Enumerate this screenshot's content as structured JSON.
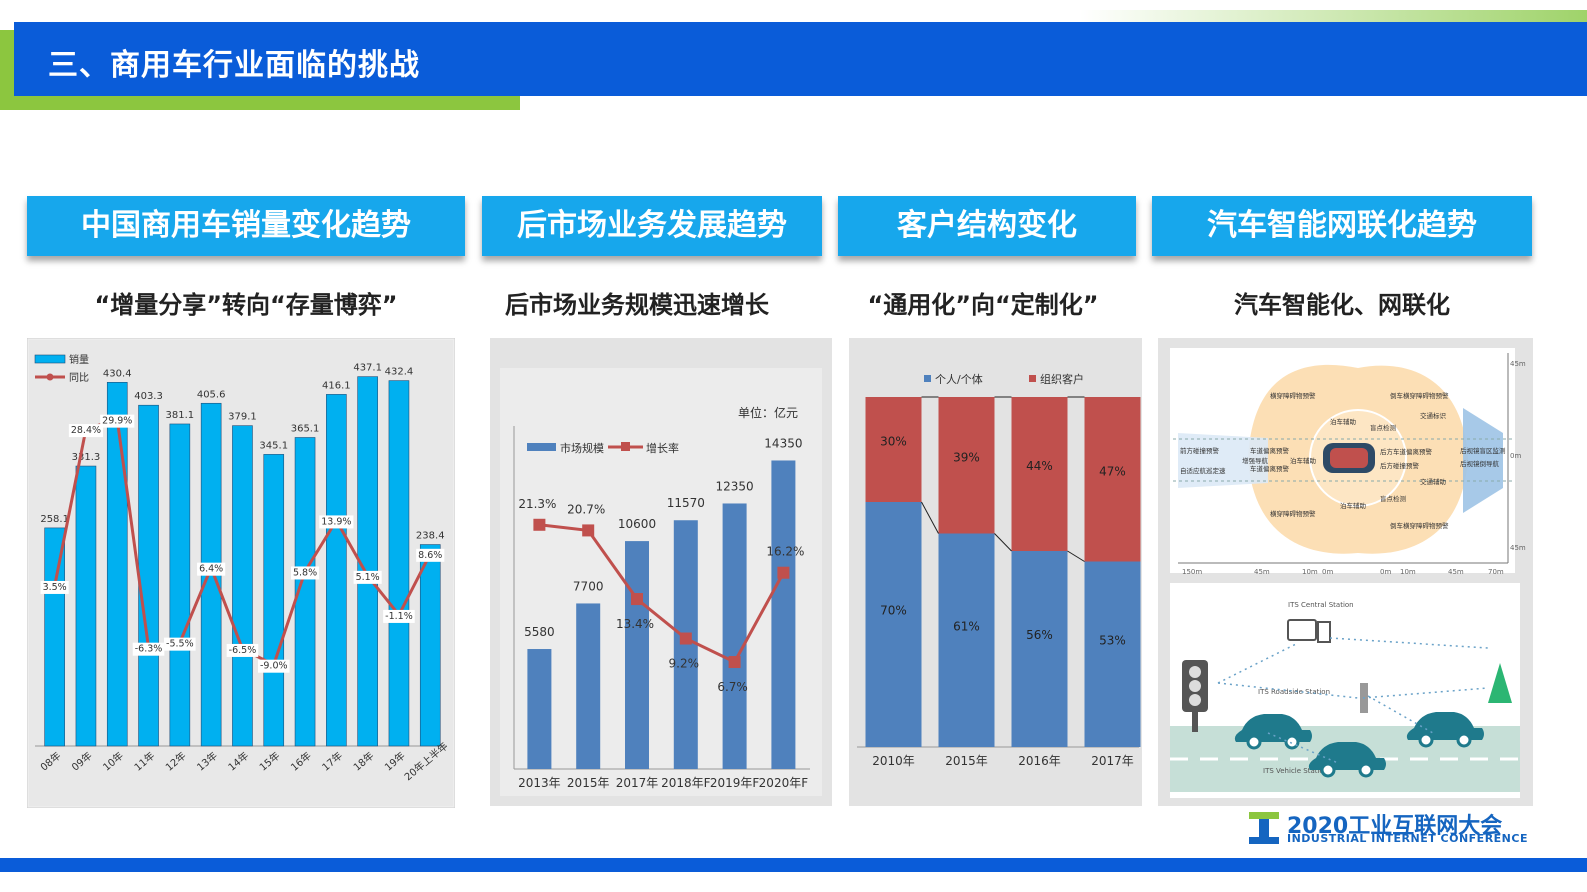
{
  "header": {
    "title": "三、商用车行业面临的挑战"
  },
  "categories": [
    {
      "title": "中国商用车销量变化趋势",
      "subtitle": "“增量分享”转向“存量博弈”"
    },
    {
      "title": "后市场业务发展趋势",
      "subtitle": "后市场业务规模迅速增长"
    },
    {
      "title": "客户结构变化",
      "subtitle": "“通用化”向“定制化”"
    },
    {
      "title": "汽车智能网联化趋势",
      "subtitle": "汽车智能化、网联化"
    }
  ],
  "logo": {
    "line1": "2020工业互联网大会",
    "line2": "INDUSTRIAL INTERNET CONFERENCE"
  },
  "colors": {
    "accent_blue": "#0a5cd9",
    "green": "#8cc63f",
    "cat_blue": "#17a7ec",
    "bar_cyan": "#00b0f0",
    "line_red": "#c0504d",
    "bar_blue": "#4f81bd"
  },
  "chart_data": [
    {
      "type": "bar",
      "legend": [
        "销量",
        "同比"
      ],
      "categories": [
        "08年",
        "09年",
        "10年",
        "11年",
        "12年",
        "13年",
        "14年",
        "15年",
        "16年",
        "17年",
        "18年",
        "19年",
        "20年上半年"
      ],
      "series": [
        {
          "name": "销量",
          "values": [
            258.1,
            331.3,
            430.4,
            403.3,
            381.1,
            405.6,
            379.1,
            345.1,
            365.1,
            416.1,
            437.1,
            432.4,
            238.4
          ],
          "labels": [
            "258.1",
            "331.3",
            "430.4",
            "403.3",
            "381.1",
            "405.6",
            "379.1",
            "345.1",
            "365.1",
            "416.1",
            "437.1",
            "432.4",
            "238.4"
          ]
        },
        {
          "name": "同比",
          "type": "line",
          "values": [
            3.5,
            28.4,
            29.9,
            -6.3,
            -5.5,
            6.4,
            -6.5,
            -9.0,
            5.8,
            13.9,
            5.1,
            -1.1,
            8.6
          ],
          "labels": [
            "3.5%",
            "28.4%",
            "29.9%",
            "-6.3%",
            "-5.5%",
            "6.4%",
            "-6.5%",
            "-9.0%",
            "5.8%",
            "13.9%",
            "5.1%",
            "-1.1%",
            "8.6%"
          ]
        }
      ],
      "ylim": [
        0,
        450
      ]
    },
    {
      "type": "bar",
      "unit": "单位：亿元",
      "legend": [
        "市场规模",
        "增长率"
      ],
      "categories": [
        "2013年",
        "2015年",
        "2017年",
        "2018年F",
        "2019年F",
        "2020年F"
      ],
      "series": [
        {
          "name": "市场规模",
          "values": [
            5580,
            7700,
            10600,
            11570,
            12350,
            14350
          ],
          "labels": [
            "5580",
            "7700",
            "10600",
            "11570",
            "12350",
            "14350"
          ]
        },
        {
          "name": "增长率",
          "type": "line",
          "values": [
            21.3,
            20.7,
            13.4,
            9.2,
            6.7,
            16.2
          ],
          "labels": [
            "21.3%",
            "20.7%",
            "13.4%",
            "9.2%",
            "6.7%",
            "16.2%"
          ]
        }
      ],
      "ylim": [
        0,
        16000
      ]
    },
    {
      "type": "bar",
      "stacked": true,
      "legend": [
        "个人/个体",
        "组织客户"
      ],
      "categories": [
        "2010年",
        "2015年",
        "2016年",
        "2017年"
      ],
      "series": [
        {
          "name": "个人/个体",
          "values": [
            70,
            61,
            56,
            53
          ],
          "labels": [
            "70%",
            "61%",
            "56%",
            "53%"
          ]
        },
        {
          "name": "组织客户",
          "values": [
            30,
            39,
            44,
            47
          ],
          "labels": [
            "30%",
            "39%",
            "44%",
            "47%"
          ]
        }
      ],
      "ylim": [
        0,
        100
      ]
    }
  ],
  "diagram": {
    "sensor_labels": [
      "横穿障碍物预警",
      "倒车横穿障碍物预警",
      "前方碰撞预警",
      "车道偏离预警",
      "泊车辅助",
      "盲点检测",
      "后方车道偏离预警",
      "后视镜盲区监测",
      "增强导航",
      "自适应航巡定速",
      "泊车辅助",
      "后方碰撞预警",
      "后视镜倒导航",
      "交通标识",
      "盲点检测",
      "泊车辅助",
      "横穿障碍物预警",
      "倒车横穿障碍物预警",
      "车道偏离预警",
      "交通辅助"
    ],
    "axis_left": [
      "150m",
      "45m",
      "10m",
      "0m"
    ],
    "axis_right": [
      "0m",
      "10m",
      "45m",
      "70m"
    ],
    "axis_v": [
      "45m",
      "0m",
      "45m"
    ],
    "its_labels": [
      "ITS Central Station",
      "ITS Roadside Station",
      "ITS Vehicle Station"
    ]
  }
}
